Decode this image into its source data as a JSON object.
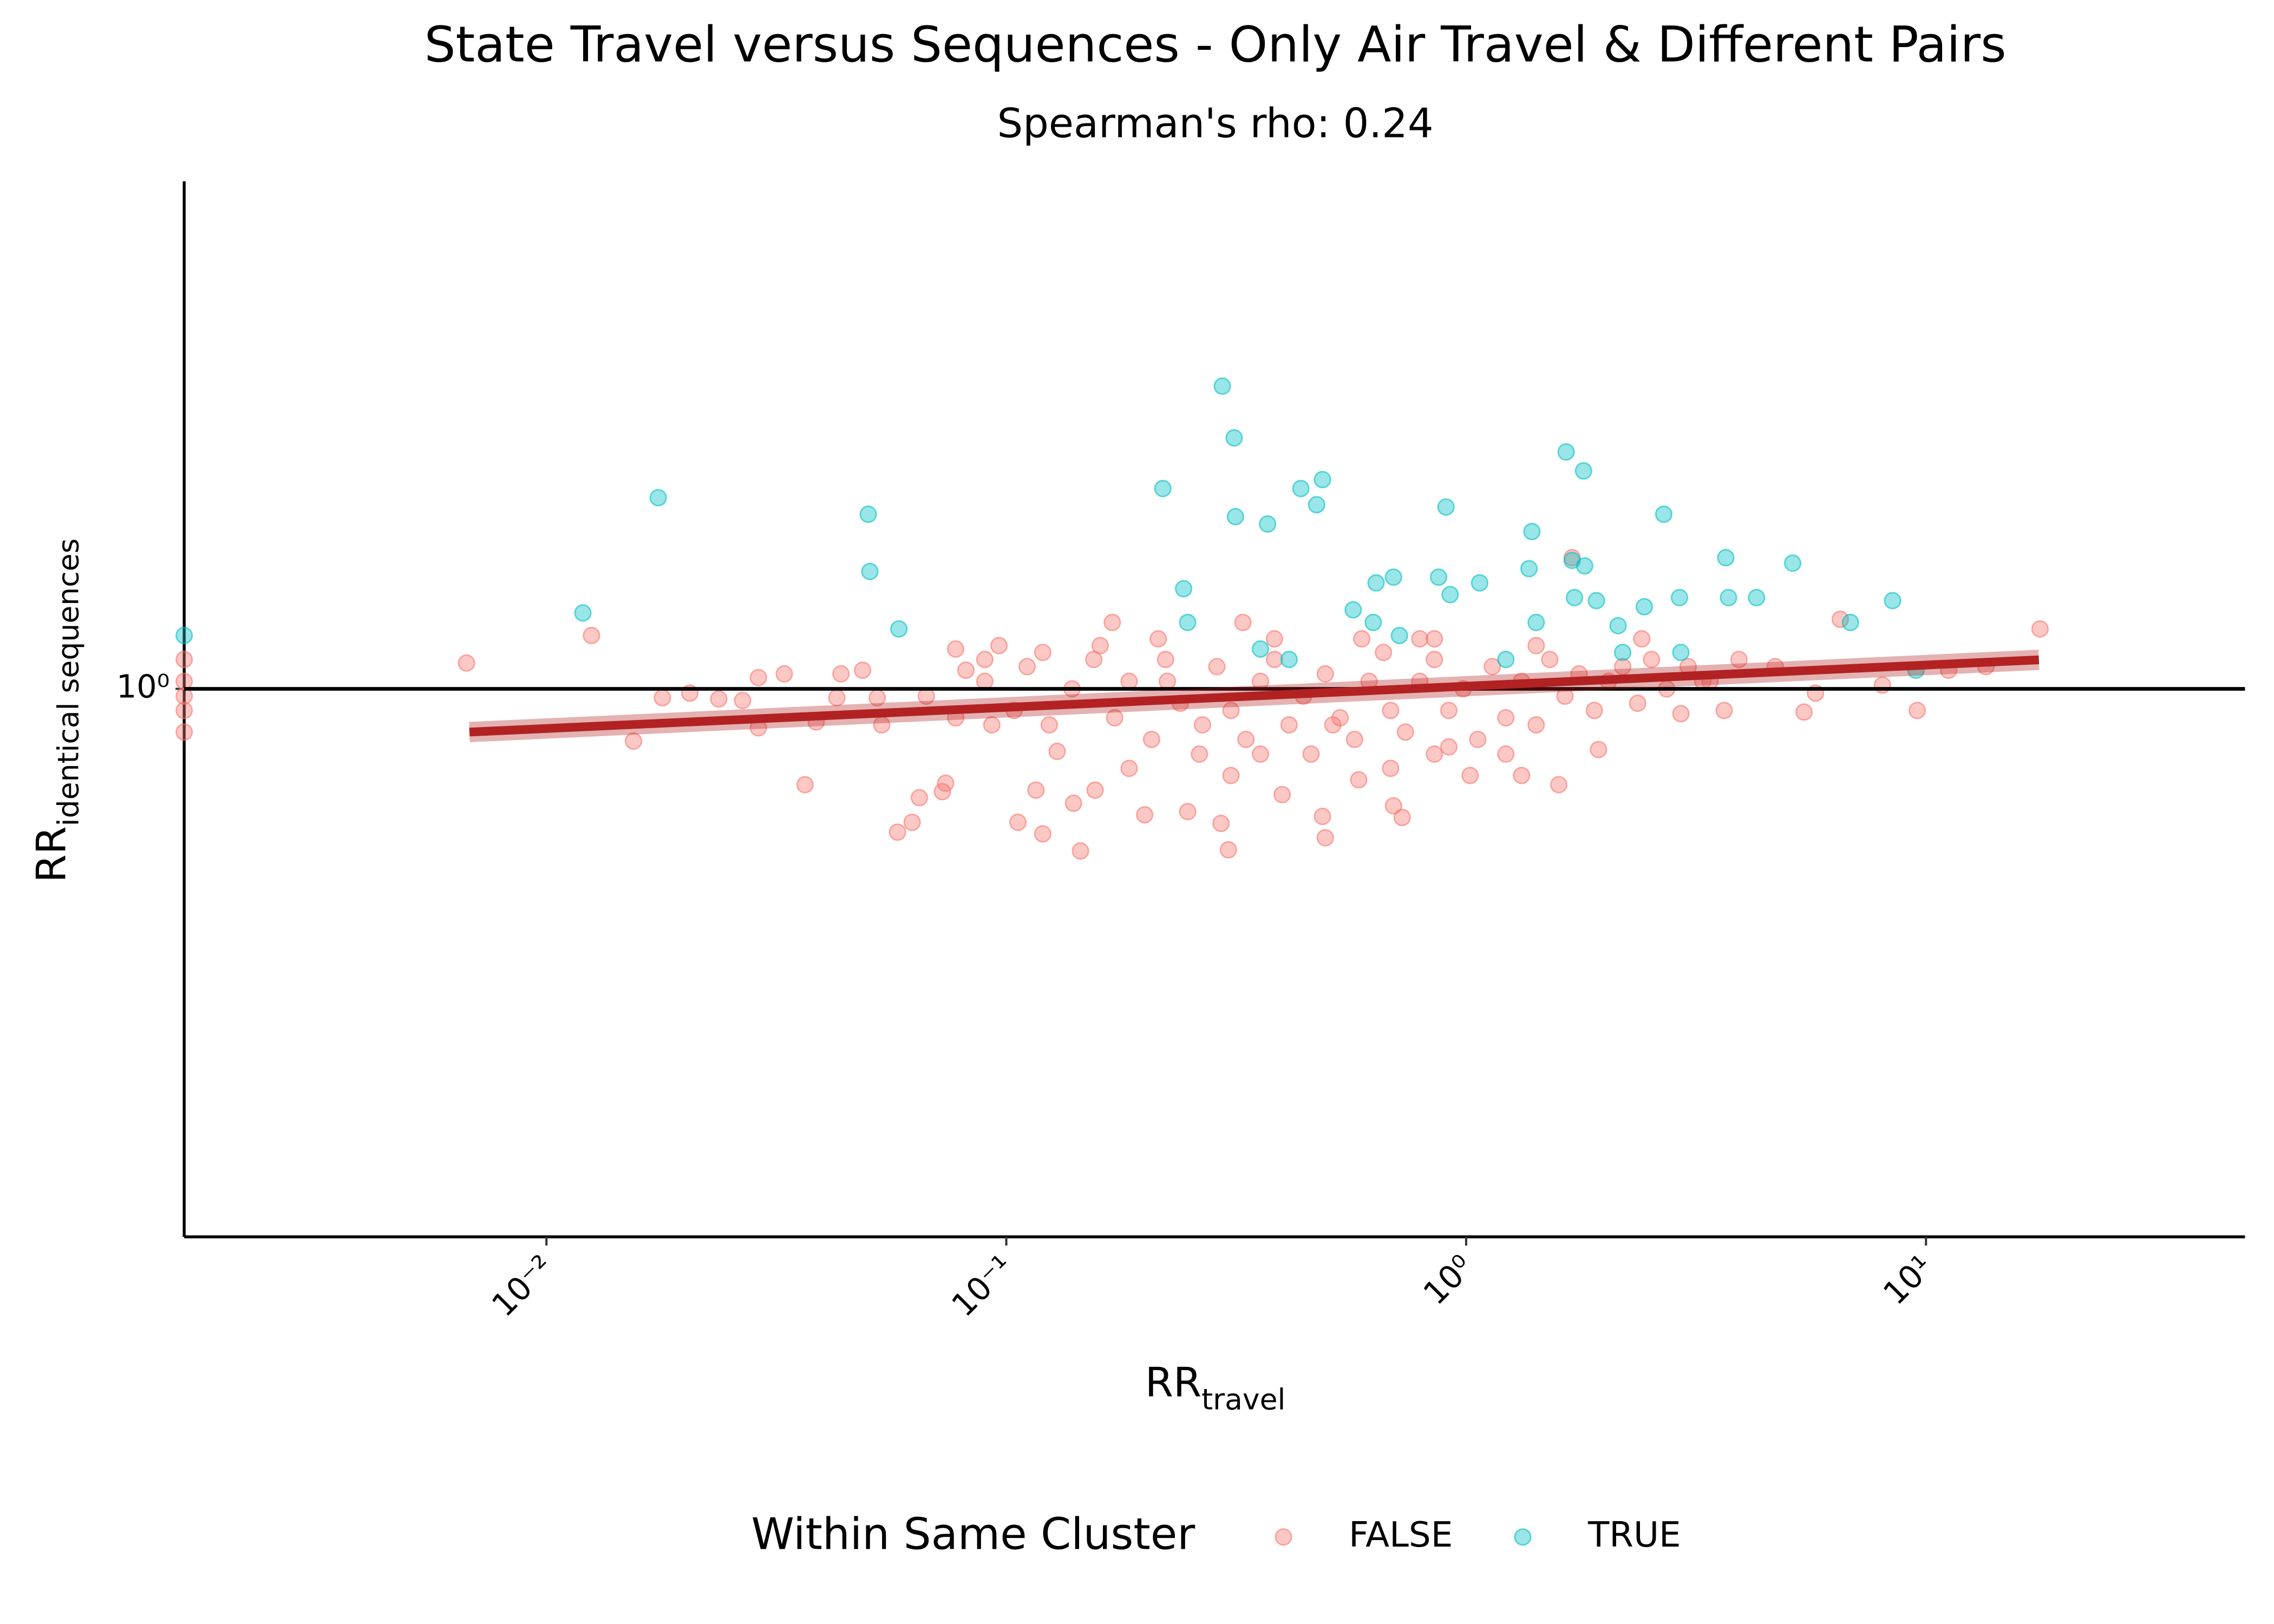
{
  "chart_data": {
    "type": "scatter",
    "title": "State Travel versus Sequences - Only Air Travel & Different Pairs",
    "subtitle": "Spearman's rho: 0.24",
    "xlabel": {
      "text": "RR",
      "subscript": "travel"
    },
    "ylabel": {
      "text": "RR",
      "subscript": "identical sequences"
    },
    "log_x": true,
    "log_y": true,
    "grid": false,
    "xlim": [
      0.00163,
      49.4
    ],
    "ylim": [
      0.238,
      3.78
    ],
    "xticks": [
      {
        "value": 0.01,
        "label": "10⁻²"
      },
      {
        "value": 0.1,
        "label": "10⁻¹"
      },
      {
        "value": 1,
        "label": "10⁰"
      },
      {
        "value": 10,
        "label": "10¹"
      }
    ],
    "yticks": [
      {
        "value": 1,
        "label": "10⁰"
      }
    ],
    "hline": 1,
    "trend": {
      "x": [
        0.0068,
        17.6
      ],
      "values": [
        0.893,
        1.079
      ],
      "color": "#b22222"
    },
    "legend_title": "Within Same Cluster",
    "legend_position": "bottom",
    "series": [
      {
        "name": "FALSE",
        "color": "#f8766d",
        "x": [
          0.00163,
          0.00163,
          0.00163,
          0.00163,
          0.00163,
          0.0067,
          0.01253,
          0.01546,
          0.01787,
          0.0205,
          0.0237,
          0.0267,
          0.0289,
          0.0289,
          0.0329,
          0.0365,
          0.0386,
          0.0428,
          0.0437,
          0.0487,
          0.0524,
          0.0536,
          0.058,
          0.0624,
          0.0647,
          0.0726,
          0.0738,
          0.0776,
          0.0817,
          0.093,
          0.0964,
          0.106,
          0.116,
          0.12,
          0.129,
          0.14,
          0.145,
          0.156,
          0.17,
          0.2,
          0.224,
          0.248,
          0.263,
          0.293,
          0.304,
          0.327,
          0.357,
          0.398,
          0.487,
          0.494,
          0.584,
          0.695,
          0.726,
          0.793,
          0.853,
          1.02,
          1.32,
          1.59,
          1.7,
          1.94,
          2.41,
          2.93,
          3.27,
          4.7,
          5.43,
          5.75,
          6.51,
          8.04,
          9.57,
          11.2,
          13.5,
          17.7,
          0.067,
          0.0776,
          0.0898,
          0.104,
          0.111,
          0.124,
          0.139,
          0.155,
          0.172,
          0.185,
          0.207,
          0.222,
          0.239,
          0.267,
          0.287,
          0.308,
          0.332,
          0.357,
          0.383,
          0.412,
          0.443,
          0.46,
          0.494,
          0.532,
          0.572,
          0.615,
          0.661,
          0.685,
          0.738,
          0.793,
          0.853,
          0.917,
          0.986,
          1.06,
          1.14,
          1.22,
          1.32,
          1.42,
          1.52,
          1.64,
          1.76,
          1.9,
          2.04,
          2.19,
          2.36,
          2.53,
          2.73,
          3.04,
          3.39,
          3.92,
          3.64,
          1.42,
          0.853,
          0.593,
          0.383,
          0.214,
          0.16,
          0.12,
          0.0898,
          0.308,
          0.185,
          0.685,
          1.22,
          0.513,
          0.917
        ],
        "values": [
          1.08,
          1.02,
          0.981,
          0.945,
          0.893,
          1.07,
          1.15,
          0.872,
          0.977,
          0.989,
          0.974,
          0.97,
          1.03,
          0.903,
          1.04,
          0.778,
          0.917,
          0.977,
          1.04,
          1.05,
          0.977,
          0.91,
          0.687,
          0.705,
          0.752,
          0.764,
          0.781,
          1.11,
          1.05,
          0.91,
          1.12,
          0.705,
          0.767,
          0.684,
          0.849,
          0.741,
          0.654,
          0.767,
          1.19,
          0.719,
          1.02,
          0.725,
          0.843,
          0.703,
          0.656,
          1.19,
          0.843,
          0.758,
          0.716,
          0.677,
          0.788,
          0.736,
          0.714,
          1.14,
          0.843,
          0.797,
          0.797,
          0.778,
          1.41,
          0.853,
          1.14,
          0.937,
          1.02,
          1.06,
          0.941,
          0.989,
          1.2,
          1.01,
          0.945,
          1.05,
          1.06,
          1.17,
          0.981,
          0.927,
          1.02,
          0.945,
          1.06,
          0.91,
          1.0,
          1.08,
          0.927,
          1.02,
          0.876,
          1.08,
          0.963,
          0.91,
          1.06,
          0.945,
          0.876,
          1.02,
          1.08,
          0.91,
          0.981,
          0.843,
          1.04,
          0.927,
          0.876,
          1.02,
          1.1,
          0.945,
          0.893,
          1.02,
          1.08,
          0.945,
          1.0,
          0.876,
          1.06,
          0.927,
          1.02,
          0.91,
          1.08,
          0.981,
          1.04,
          0.945,
          1.02,
          1.06,
          0.963,
          1.08,
          1.0,
          1.06,
          1.02,
          1.08,
          0.945,
          1.12,
          1.14,
          1.14,
          1.14,
          1.14,
          1.12,
          1.1,
          1.08,
          0.797,
          0.812,
          0.812,
          0.843,
          0.91,
          0.859
        ]
      },
      {
        "name": "TRUE",
        "color": "#00bfc4",
        "x": [
          0.00163,
          0.012,
          0.0175,
          0.0501,
          0.0505,
          0.0584,
          0.219,
          0.243,
          0.248,
          0.295,
          0.313,
          0.315,
          0.37,
          0.437,
          0.473,
          0.487,
          0.568,
          0.628,
          0.637,
          0.695,
          0.716,
          0.904,
          0.871,
          0.923,
          1.07,
          1.39,
          1.37,
          1.65,
          1.8,
          1.7,
          1.81,
          1.42,
          1.72,
          1.92,
          2.14,
          2.44,
          2.69,
          2.91,
          3.67,
          3.72,
          4.28,
          5.13,
          6.85,
          8.46,
          9.51,
          2.93,
          2.19,
          1.22,
          0.412,
          0.357
        ],
        "values": [
          1.15,
          1.22,
          1.65,
          1.58,
          1.36,
          1.17,
          1.69,
          1.3,
          1.19,
          2.21,
          1.93,
          1.57,
          1.54,
          1.69,
          1.62,
          1.73,
          1.23,
          1.19,
          1.32,
          1.34,
          1.15,
          1.61,
          1.34,
          1.28,
          1.32,
          1.51,
          1.37,
          1.86,
          1.77,
          1.4,
          1.38,
          1.19,
          1.27,
          1.26,
          1.18,
          1.24,
          1.58,
          1.27,
          1.41,
          1.27,
          1.27,
          1.39,
          1.19,
          1.26,
          1.05,
          1.1,
          1.1,
          1.08,
          1.08,
          1.11
        ]
      }
    ]
  }
}
